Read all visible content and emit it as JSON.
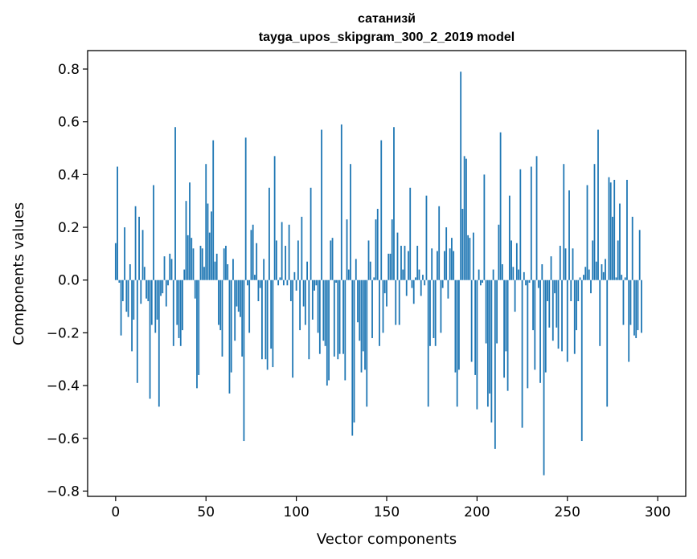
{
  "chart_data": {
    "type": "bar",
    "title_line1": "сатанизй",
    "title_line2": "tayga_upos_skipgram_300_2_2019 model",
    "xlabel": "Vector components",
    "ylabel": "Components values",
    "xlim": [
      -15.5,
      315.5
    ],
    "ylim": [
      -0.82,
      0.87
    ],
    "xticks": [
      0,
      50,
      100,
      150,
      200,
      250,
      300
    ],
    "xtick_labels": [
      "0",
      "50",
      "100",
      "150",
      "200",
      "250",
      "300"
    ],
    "yticks": [
      -0.8,
      -0.6,
      -0.4,
      -0.2,
      0.0,
      0.2,
      0.4,
      0.6,
      0.8
    ],
    "ytick_labels": [
      "−0.8",
      "−0.6",
      "−0.4",
      "−0.2",
      "0.0",
      "0.2",
      "0.4",
      "0.6",
      "0.8"
    ],
    "bar_color": "#1f77b4",
    "values": [
      0.14,
      0.43,
      -0.01,
      -0.21,
      -0.08,
      0.2,
      -0.12,
      -0.14,
      0.06,
      -0.27,
      -0.15,
      0.28,
      -0.39,
      0.24,
      -0.09,
      0.19,
      0.05,
      -0.07,
      -0.08,
      -0.45,
      -0.17,
      0.36,
      -0.2,
      -0.15,
      -0.48,
      -0.06,
      -0.05,
      0.09,
      -0.1,
      -0.02,
      0.1,
      0.08,
      -0.25,
      0.58,
      -0.17,
      -0.22,
      -0.25,
      -0.19,
      0.04,
      0.3,
      0.17,
      0.37,
      0.16,
      0.12,
      -0.07,
      -0.41,
      -0.36,
      0.13,
      0.12,
      0.05,
      0.44,
      0.29,
      0.18,
      0.26,
      0.53,
      0.07,
      0.1,
      -0.17,
      -0.19,
      -0.29,
      0.12,
      0.13,
      0.06,
      -0.43,
      -0.35,
      0.08,
      -0.23,
      -0.1,
      -0.12,
      -0.14,
      -0.29,
      -0.61,
      0.54,
      -0.02,
      -0.2,
      0.19,
      0.21,
      0.02,
      0.14,
      -0.08,
      -0.03,
      -0.3,
      0.08,
      -0.3,
      -0.34,
      0.35,
      -0.26,
      -0.33,
      0.47,
      0.15,
      -0.02,
      0.01,
      0.22,
      -0.02,
      0.13,
      -0.02,
      0.21,
      -0.08,
      -0.37,
      0.03,
      -0.04,
      0.15,
      -0.19,
      0.24,
      -0.1,
      -0.17,
      0.07,
      -0.3,
      0.35,
      -0.15,
      -0.04,
      -0.02,
      -0.2,
      -0.28,
      0.57,
      -0.23,
      -0.25,
      -0.4,
      -0.38,
      0.15,
      0.16,
      -0.29,
      -0.01,
      -0.3,
      -0.28,
      0.59,
      -0.28,
      -0.38,
      0.23,
      0.04,
      0.44,
      -0.59,
      -0.54,
      0.08,
      -0.16,
      -0.23,
      -0.35,
      -0.27,
      -0.34,
      -0.48,
      0.15,
      0.07,
      -0.22,
      0.01,
      0.23,
      0.27,
      -0.25,
      0.53,
      -0.2,
      -0.05,
      -0.1,
      0.1,
      0.1,
      0.23,
      0.58,
      -0.17,
      0.18,
      -0.17,
      0.13,
      0.04,
      0.13,
      -0.06,
      0.11,
      0.35,
      -0.03,
      -0.09,
      0.01,
      0.13,
      0.04,
      -0.06,
      0.02,
      -0.02,
      0.32,
      -0.48,
      -0.25,
      0.12,
      -0.22,
      -0.25,
      0.11,
      0.28,
      -0.2,
      -0.03,
      0.11,
      0.2,
      -0.07,
      0.12,
      0.16,
      0.11,
      -0.35,
      -0.48,
      -0.34,
      0.79,
      0.27,
      0.47,
      0.46,
      0.17,
      0.16,
      -0.31,
      0.18,
      -0.36,
      -0.49,
      0.04,
      -0.02,
      -0.01,
      0.4,
      -0.24,
      -0.48,
      -0.43,
      -0.54,
      0.04,
      -0.64,
      -0.24,
      0.21,
      0.56,
      0.06,
      -0.37,
      -0.27,
      -0.42,
      0.32,
      0.15,
      0.05,
      -0.12,
      0.14,
      0.04,
      0.42,
      -0.56,
      0.03,
      -0.02,
      -0.41,
      -0.01,
      0.43,
      -0.19,
      -0.34,
      0.47,
      -0.03,
      -0.39,
      0.06,
      -0.74,
      -0.35,
      -0.08,
      -0.18,
      0.09,
      -0.23,
      -0.05,
      -0.18,
      -0.26,
      0.13,
      -0.27,
      0.44,
      0.12,
      -0.31,
      0.34,
      -0.08,
      0.12,
      -0.28,
      -0.19,
      -0.08,
      0.01,
      -0.61,
      0.02,
      0.05,
      0.36,
      0.04,
      -0.05,
      0.15,
      0.44,
      0.07,
      0.57,
      -0.25,
      0.06,
      0.03,
      0.08,
      -0.48,
      0.39,
      0.37,
      0.24,
      0.38,
      0.01,
      0.15,
      0.29,
      0.02,
      -0.17,
      0.01,
      0.38,
      -0.31,
      -0.17,
      0.24,
      -0.21,
      -0.22,
      -0.19,
      0.19,
      -0.2
    ]
  }
}
